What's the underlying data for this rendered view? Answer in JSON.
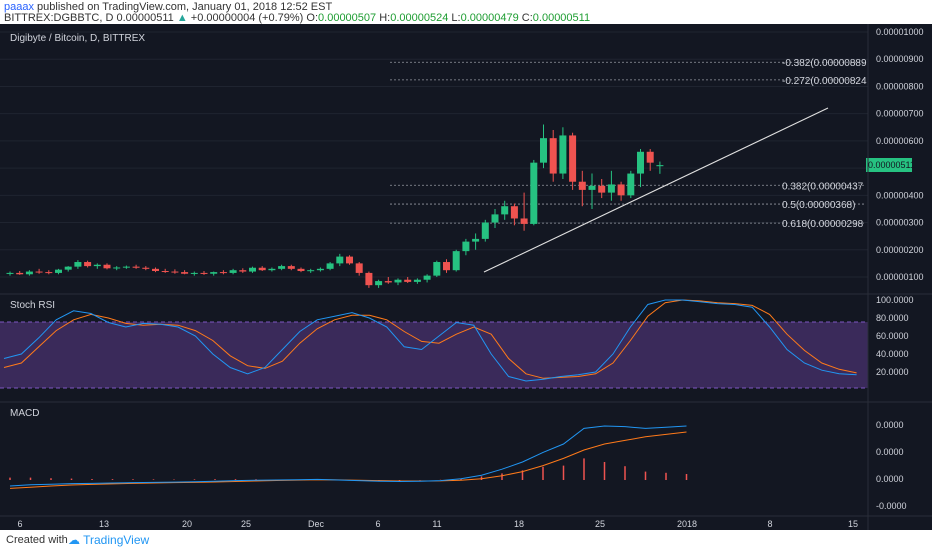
{
  "header": {
    "user": "paaax",
    "published": "published on TradingView.com, January 01, 2018 12:52 EST",
    "symbol": "BITTREX:DGBBTC, D",
    "price": "0.00000511",
    "change": "+0.00000004 (+0.79%)",
    "o_label": "O:",
    "o_value": "0.00000507",
    "h_label": "H:",
    "h_value": "0.00000524",
    "l_label": "L:",
    "l_value": "0.00000479",
    "c_label": "C:",
    "c_value": "0.00000511"
  },
  "chart_title": "Digibyte / Bitcoin, D, BITTREX",
  "colors": {
    "up": "#26c281",
    "down": "#ef5350",
    "bg": "#131722",
    "grid": "#1f2430",
    "text": "#d1d4dc",
    "fib": "#9598a1",
    "trend": "#e0e0e0",
    "rsi_k": "#2196f3",
    "rsi_d": "#ff7a1a",
    "rsi_band": "#3a2a5a",
    "macd_line": "#2196f3",
    "signal_line": "#ff7a1a",
    "hist": "#ef5350"
  },
  "price_axis": {
    "ticks": [
      "0.00001000",
      "0.00000900",
      "0.00000800",
      "0.00000700",
      "0.00000600",
      "0.00000400",
      "0.00000300",
      "0.00000200",
      "0.00000100"
    ],
    "current": "0.00000511"
  },
  "fib_levels": [
    {
      "label": "-0.382(0.00000889",
      "value": 8.89e-06
    },
    {
      "label": "-0.272(0.00000824",
      "value": 8.24e-06
    },
    {
      "label": "0.382(0.00000437",
      "value": 4.37e-06
    },
    {
      "label": "0.5(0.00000368)",
      "value": 3.68e-06
    },
    {
      "label": "0.618(0.00000298",
      "value": 2.98e-06
    }
  ],
  "stoch_rsi": {
    "title": "Stoch RSI",
    "ticks": [
      "100.0000",
      "80.0000",
      "60.0000",
      "40.0000",
      "20.0000"
    ]
  },
  "macd": {
    "title": "MACD",
    "ticks": [
      "0.0000",
      "0.0000",
      "0.0000",
      "-0.0000"
    ]
  },
  "x_axis": {
    "labels": [
      "6",
      "13",
      "20",
      "25",
      "Dec",
      "6",
      "11",
      "18",
      "25",
      "2018",
      "8",
      "15"
    ]
  },
  "footer": {
    "created": "Created with",
    "brand": "TradingView"
  },
  "chart_data": {
    "type": "candlestick",
    "candles": [
      {
        "o": 1.12,
        "h": 1.2,
        "l": 1.05,
        "c": 1.15
      },
      {
        "o": 1.15,
        "h": 1.22,
        "l": 1.08,
        "c": 1.1
      },
      {
        "o": 1.1,
        "h": 1.25,
        "l": 1.05,
        "c": 1.2
      },
      {
        "o": 1.2,
        "h": 1.3,
        "l": 1.12,
        "c": 1.18
      },
      {
        "o": 1.18,
        "h": 1.25,
        "l": 1.1,
        "c": 1.15
      },
      {
        "o": 1.15,
        "h": 1.3,
        "l": 1.1,
        "c": 1.27
      },
      {
        "o": 1.27,
        "h": 1.4,
        "l": 1.2,
        "c": 1.38
      },
      {
        "o": 1.38,
        "h": 1.62,
        "l": 1.3,
        "c": 1.55
      },
      {
        "o": 1.55,
        "h": 1.6,
        "l": 1.35,
        "c": 1.4
      },
      {
        "o": 1.4,
        "h": 1.5,
        "l": 1.3,
        "c": 1.45
      },
      {
        "o": 1.45,
        "h": 1.5,
        "l": 1.28,
        "c": 1.32
      },
      {
        "o": 1.32,
        "h": 1.4,
        "l": 1.25,
        "c": 1.35
      },
      {
        "o": 1.35,
        "h": 1.42,
        "l": 1.3,
        "c": 1.38
      },
      {
        "o": 1.38,
        "h": 1.45,
        "l": 1.3,
        "c": 1.34
      },
      {
        "o": 1.34,
        "h": 1.4,
        "l": 1.25,
        "c": 1.3
      },
      {
        "o": 1.3,
        "h": 1.35,
        "l": 1.18,
        "c": 1.22
      },
      {
        "o": 1.22,
        "h": 1.3,
        "l": 1.15,
        "c": 1.2
      },
      {
        "o": 1.2,
        "h": 1.28,
        "l": 1.12,
        "c": 1.18
      },
      {
        "o": 1.18,
        "h": 1.25,
        "l": 1.1,
        "c": 1.12
      },
      {
        "o": 1.12,
        "h": 1.2,
        "l": 1.05,
        "c": 1.15
      },
      {
        "o": 1.15,
        "h": 1.22,
        "l": 1.08,
        "c": 1.12
      },
      {
        "o": 1.12,
        "h": 1.2,
        "l": 1.05,
        "c": 1.18
      },
      {
        "o": 1.18,
        "h": 1.25,
        "l": 1.1,
        "c": 1.15
      },
      {
        "o": 1.15,
        "h": 1.3,
        "l": 1.1,
        "c": 1.25
      },
      {
        "o": 1.25,
        "h": 1.32,
        "l": 1.15,
        "c": 1.2
      },
      {
        "o": 1.2,
        "h": 1.38,
        "l": 1.15,
        "c": 1.34
      },
      {
        "o": 1.34,
        "h": 1.4,
        "l": 1.22,
        "c": 1.25
      },
      {
        "o": 1.25,
        "h": 1.35,
        "l": 1.2,
        "c": 1.3
      },
      {
        "o": 1.3,
        "h": 1.45,
        "l": 1.25,
        "c": 1.4
      },
      {
        "o": 1.4,
        "h": 1.45,
        "l": 1.25,
        "c": 1.3
      },
      {
        "o": 1.3,
        "h": 1.35,
        "l": 1.18,
        "c": 1.22
      },
      {
        "o": 1.22,
        "h": 1.3,
        "l": 1.15,
        "c": 1.25
      },
      {
        "o": 1.25,
        "h": 1.35,
        "l": 1.2,
        "c": 1.3
      },
      {
        "o": 1.3,
        "h": 1.55,
        "l": 1.25,
        "c": 1.5
      },
      {
        "o": 1.5,
        "h": 1.85,
        "l": 1.4,
        "c": 1.75
      },
      {
        "o": 1.75,
        "h": 1.8,
        "l": 1.45,
        "c": 1.5
      },
      {
        "o": 1.5,
        "h": 1.55,
        "l": 1.05,
        "c": 1.15
      },
      {
        "o": 1.15,
        "h": 1.2,
        "l": 0.6,
        "c": 0.7
      },
      {
        "o": 0.7,
        "h": 0.9,
        "l": 0.6,
        "c": 0.85
      },
      {
        "o": 0.85,
        "h": 1.0,
        "l": 0.75,
        "c": 0.8
      },
      {
        "o": 0.8,
        "h": 0.95,
        "l": 0.7,
        "c": 0.9
      },
      {
        "o": 0.9,
        "h": 1.0,
        "l": 0.78,
        "c": 0.82
      },
      {
        "o": 0.82,
        "h": 0.95,
        "l": 0.75,
        "c": 0.9
      },
      {
        "o": 0.9,
        "h": 1.1,
        "l": 0.8,
        "c": 1.05
      },
      {
        "o": 1.05,
        "h": 1.6,
        "l": 1.0,
        "c": 1.55
      },
      {
        "o": 1.55,
        "h": 1.65,
        "l": 1.15,
        "c": 1.25
      },
      {
        "o": 1.25,
        "h": 2.0,
        "l": 1.2,
        "c": 1.95
      },
      {
        "o": 1.95,
        "h": 2.4,
        "l": 1.8,
        "c": 2.3
      },
      {
        "o": 2.3,
        "h": 2.6,
        "l": 2.0,
        "c": 2.4
      },
      {
        "o": 2.4,
        "h": 3.1,
        "l": 2.3,
        "c": 3.0
      },
      {
        "o": 3.0,
        "h": 3.5,
        "l": 2.8,
        "c": 3.3
      },
      {
        "o": 3.3,
        "h": 3.8,
        "l": 3.1,
        "c": 3.6
      },
      {
        "o": 3.6,
        "h": 3.7,
        "l": 2.9,
        "c": 3.15
      },
      {
        "o": 3.15,
        "h": 4.1,
        "l": 2.7,
        "c": 2.95
      },
      {
        "o": 2.95,
        "h": 5.3,
        "l": 2.9,
        "c": 5.2
      },
      {
        "o": 5.2,
        "h": 6.6,
        "l": 5.0,
        "c": 6.1
      },
      {
        "o": 6.1,
        "h": 6.4,
        "l": 4.5,
        "c": 4.8
      },
      {
        "o": 4.8,
        "h": 6.5,
        "l": 4.6,
        "c": 6.2
      },
      {
        "o": 6.2,
        "h": 6.3,
        "l": 4.2,
        "c": 4.5
      },
      {
        "o": 4.5,
        "h": 4.9,
        "l": 3.6,
        "c": 4.2
      },
      {
        "o": 4.2,
        "h": 4.8,
        "l": 3.5,
        "c": 4.35
      },
      {
        "o": 4.35,
        "h": 4.6,
        "l": 3.9,
        "c": 4.1
      },
      {
        "o": 4.1,
        "h": 4.9,
        "l": 3.8,
        "c": 4.4
      },
      {
        "o": 4.4,
        "h": 4.5,
        "l": 3.8,
        "c": 4.0
      },
      {
        "o": 4.0,
        "h": 4.9,
        "l": 3.9,
        "c": 4.8
      },
      {
        "o": 4.8,
        "h": 5.7,
        "l": 4.3,
        "c": 5.6
      },
      {
        "o": 5.6,
        "h": 5.7,
        "l": 4.9,
        "c": 5.2
      },
      {
        "o": 5.07,
        "h": 5.24,
        "l": 4.79,
        "c": 5.11
      }
    ],
    "price_scale": "1e-6",
    "trendline": [
      [
        1.05e-06,
        7.2e-06
      ]
    ],
    "stoch_k": [
      35,
      40,
      58,
      78,
      88,
      85,
      75,
      70,
      74,
      73,
      70,
      60,
      40,
      25,
      18,
      25,
      45,
      65,
      78,
      82,
      86,
      80,
      70,
      48,
      45,
      60,
      75,
      72,
      40,
      15,
      10,
      12,
      15,
      17,
      20,
      40,
      70,
      95,
      100,
      100,
      98,
      96,
      95,
      92,
      70,
      45,
      30,
      22,
      18,
      17
    ],
    "stoch_d": [
      25,
      30,
      48,
      66,
      78,
      84,
      80,
      74,
      72,
      73,
      72,
      66,
      55,
      38,
      27,
      24,
      32,
      52,
      68,
      78,
      83,
      83,
      78,
      65,
      54,
      52,
      62,
      70,
      62,
      35,
      18,
      13,
      14,
      15,
      18,
      30,
      55,
      82,
      97,
      100,
      99,
      97,
      96,
      94,
      84,
      62,
      44,
      30,
      23,
      19
    ],
    "macd_line": [
      -0.5,
      -0.4,
      -0.35,
      -0.3,
      -0.28,
      -0.25,
      -0.22,
      -0.2,
      -0.18,
      -0.15,
      -0.1,
      -0.05,
      -0.02,
      0.0,
      0.02,
      0.05,
      0.0,
      -0.05,
      -0.1,
      -0.12,
      -0.1,
      -0.05,
      0.1,
      0.4,
      0.9,
      1.5,
      2.3,
      3.0,
      4.3,
      4.5,
      4.45,
      4.3,
      4.4,
      4.5
    ],
    "signal_line": [
      -0.7,
      -0.6,
      -0.5,
      -0.42,
      -0.36,
      -0.32,
      -0.28,
      -0.25,
      -0.22,
      -0.2,
      -0.17,
      -0.12,
      -0.08,
      -0.04,
      -0.01,
      0.02,
      0.01,
      -0.02,
      -0.05,
      -0.08,
      -0.08,
      -0.07,
      -0.02,
      0.1,
      0.35,
      0.7,
      1.2,
      1.8,
      2.5,
      3.0,
      3.3,
      3.6,
      3.8,
      4.0
    ],
    "histogram": [
      0.2,
      0.2,
      0.15,
      0.12,
      0.08,
      0.07,
      0.06,
      0.05,
      0.04,
      0.05,
      0.07,
      0.07,
      0.06,
      0.04,
      0.03,
      0.03,
      -0.01,
      -0.03,
      -0.05,
      -0.04,
      -0.02,
      0.02,
      0.12,
      0.3,
      0.55,
      0.8,
      1.1,
      1.2,
      1.8,
      1.5,
      1.15,
      0.7,
      0.6,
      0.5
    ]
  }
}
